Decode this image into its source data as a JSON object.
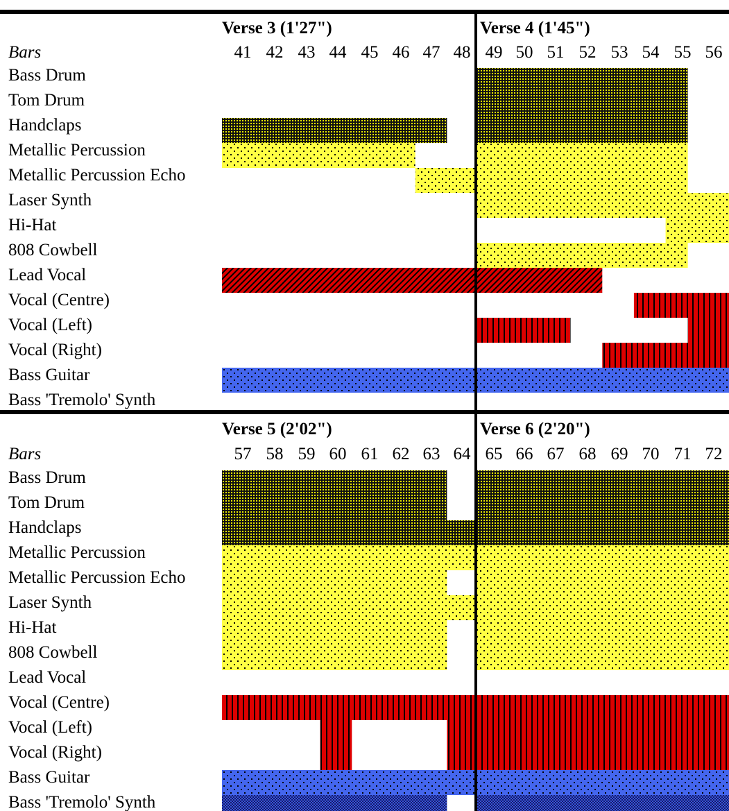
{
  "bars_label": "Bars",
  "instruments": [
    "Bass Drum",
    "Tom Drum",
    "Handclaps",
    "Metallic Percussion",
    "Metallic Percussion Echo",
    "Laser Synth",
    "Hi-Hat",
    "808 Cowbell",
    "Lead Vocal",
    "Vocal (Centre)",
    "Vocal (Left)",
    "Vocal (Right)",
    "Bass Guitar",
    "Bass 'Tremolo' Synth"
  ],
  "colors": {
    "drum": "#111111",
    "drum_dots": "#e8e800",
    "yellow": "#ffff44",
    "red": "#dd0000",
    "blue": "#4466ee"
  },
  "chart_data": {
    "type": "timeline",
    "sections": [
      {
        "verses": [
          {
            "title": "Verse 3 (1'27\")",
            "bars": [
              41,
              42,
              43,
              44,
              45,
              46,
              47,
              48
            ]
          },
          {
            "title": "Verse 4 (1'45\")",
            "bars": [
              49,
              50,
              51,
              52,
              53,
              54,
              55,
              56
            ]
          }
        ],
        "segments": [
          {
            "instrument": "Bass Drum",
            "from_bar": 49,
            "to_bar": 55.7,
            "pattern": "drum"
          },
          {
            "instrument": "Tom Drum",
            "from_bar": 49,
            "to_bar": 55.7,
            "pattern": "drum"
          },
          {
            "instrument": "Handclaps",
            "from_bar": 41,
            "to_bar": 48.1,
            "pattern": "drum"
          },
          {
            "instrument": "Handclaps",
            "from_bar": 49,
            "to_bar": 55.7,
            "pattern": "drum"
          },
          {
            "instrument": "Metallic Percussion",
            "from_bar": 41,
            "to_bar": 47.1,
            "pattern": "yellow"
          },
          {
            "instrument": "Metallic Percussion",
            "from_bar": 49,
            "to_bar": 55.7,
            "pattern": "yellow"
          },
          {
            "instrument": "Metallic Percussion Echo",
            "from_bar": 47.1,
            "to_bar": 49,
            "pattern": "yellow"
          },
          {
            "instrument": "Metallic Percussion Echo",
            "from_bar": 49,
            "to_bar": 55.7,
            "pattern": "yellow"
          },
          {
            "instrument": "Laser Synth",
            "from_bar": 49,
            "to_bar": 57,
            "pattern": "yellow"
          },
          {
            "instrument": "Hi-Hat",
            "from_bar": 55,
            "to_bar": 57,
            "pattern": "yellow"
          },
          {
            "instrument": "808 Cowbell",
            "from_bar": 49,
            "to_bar": 55.7,
            "pattern": "yellow"
          },
          {
            "instrument": "Lead Vocal",
            "from_bar": 41,
            "to_bar": 53,
            "pattern": "red_diag"
          },
          {
            "instrument": "Vocal (Centre)",
            "from_bar": 54,
            "to_bar": 57,
            "pattern": "red_vert"
          },
          {
            "instrument": "Vocal (Left)",
            "from_bar": 49,
            "to_bar": 52,
            "pattern": "red_vert"
          },
          {
            "instrument": "Vocal (Left)",
            "from_bar": 55.7,
            "to_bar": 57,
            "pattern": "red_vert"
          },
          {
            "instrument": "Vocal (Right)",
            "from_bar": 53,
            "to_bar": 57,
            "pattern": "red_vert"
          },
          {
            "instrument": "Bass Guitar",
            "from_bar": 41,
            "to_bar": 57,
            "pattern": "blue_dots"
          }
        ]
      },
      {
        "verses": [
          {
            "title": "Verse 5 (2'02\")",
            "bars": [
              57,
              58,
              59,
              60,
              61,
              62,
              63,
              64
            ]
          },
          {
            "title": "Verse 6 (2'20\")",
            "bars": [
              65,
              66,
              67,
              68,
              69,
              70,
              71,
              72
            ]
          }
        ],
        "segments": [
          {
            "instrument": "Bass Drum",
            "from_bar": 57,
            "to_bar": 64.1,
            "pattern": "drum"
          },
          {
            "instrument": "Bass Drum",
            "from_bar": 65,
            "to_bar": 73,
            "pattern": "drum"
          },
          {
            "instrument": "Tom Drum",
            "from_bar": 57,
            "to_bar": 64.1,
            "pattern": "drum"
          },
          {
            "instrument": "Tom Drum",
            "from_bar": 65,
            "to_bar": 73,
            "pattern": "drum"
          },
          {
            "instrument": "Handclaps",
            "from_bar": 57,
            "to_bar": 65,
            "pattern": "drum"
          },
          {
            "instrument": "Handclaps",
            "from_bar": 65,
            "to_bar": 73,
            "pattern": "drum"
          },
          {
            "instrument": "Metallic Percussion",
            "from_bar": 57,
            "to_bar": 73,
            "pattern": "yellow"
          },
          {
            "instrument": "Metallic Percussion Echo",
            "from_bar": 57,
            "to_bar": 64.1,
            "pattern": "yellow"
          },
          {
            "instrument": "Metallic Percussion Echo",
            "from_bar": 65,
            "to_bar": 73,
            "pattern": "yellow"
          },
          {
            "instrument": "Laser Synth",
            "from_bar": 57,
            "to_bar": 73,
            "pattern": "yellow"
          },
          {
            "instrument": "Hi-Hat",
            "from_bar": 57,
            "to_bar": 64.1,
            "pattern": "yellow"
          },
          {
            "instrument": "Hi-Hat",
            "from_bar": 65,
            "to_bar": 73,
            "pattern": "yellow"
          },
          {
            "instrument": "808 Cowbell",
            "from_bar": 57,
            "to_bar": 64.1,
            "pattern": "yellow"
          },
          {
            "instrument": "808 Cowbell",
            "from_bar": 65,
            "to_bar": 73,
            "pattern": "yellow"
          },
          {
            "instrument": "Vocal (Centre)",
            "from_bar": 57,
            "to_bar": 73,
            "pattern": "red_vert"
          },
          {
            "instrument": "Vocal (Left)",
            "from_bar": 60.1,
            "to_bar": 61.1,
            "pattern": "red_vert"
          },
          {
            "instrument": "Vocal (Left)",
            "from_bar": 64.1,
            "to_bar": 73,
            "pattern": "red_vert"
          },
          {
            "instrument": "Vocal (Right)",
            "from_bar": 60.1,
            "to_bar": 61.1,
            "pattern": "red_vert"
          },
          {
            "instrument": "Vocal (Right)",
            "from_bar": 64.1,
            "to_bar": 73,
            "pattern": "red_vert"
          },
          {
            "instrument": "Bass Guitar",
            "from_bar": 57,
            "to_bar": 73,
            "pattern": "blue_dots"
          },
          {
            "instrument": "Bass 'Tremolo' Synth",
            "from_bar": 57,
            "to_bar": 64.1,
            "pattern": "blue_check"
          },
          {
            "instrument": "Bass 'Tremolo' Synth",
            "from_bar": 65,
            "to_bar": 73,
            "pattern": "blue_check"
          }
        ]
      }
    ]
  }
}
